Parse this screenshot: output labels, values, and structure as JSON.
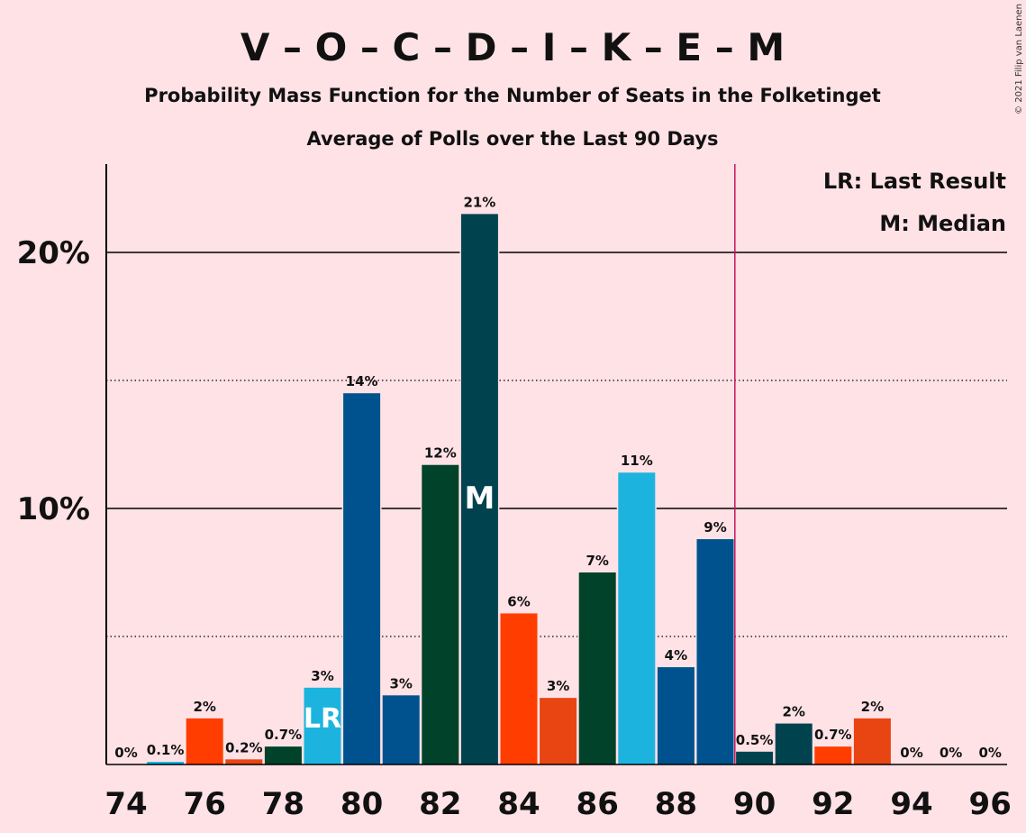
{
  "header": {
    "title": "V – O – C – D – I – K – E – M",
    "subtitle": "Probability Mass Function for the Number of Seats in the Folketinget",
    "subtitle2": "Average of Polls over the Last 90 Days",
    "copyright": "© 2021 Filip van Laenen"
  },
  "legend": {
    "last_result": "LR: Last Result",
    "median": "M: Median"
  },
  "chart_data": {
    "type": "bar",
    "title": "V – O – C – D – I – K – E – M",
    "categories": [
      74,
      75,
      76,
      77,
      78,
      79,
      80,
      81,
      82,
      83,
      84,
      85,
      86,
      87,
      88,
      89,
      90,
      91,
      92,
      93,
      94,
      95,
      96
    ],
    "values": [
      0,
      0.1,
      1.8,
      0.2,
      0.7,
      3.0,
      14.5,
      2.7,
      11.7,
      21.5,
      5.9,
      2.6,
      7.5,
      11.4,
      3.8,
      8.8,
      0.5,
      1.6,
      0.7,
      1.8,
      0,
      0,
      0
    ],
    "labels": [
      "0%",
      "0.1%",
      "2%",
      "0.2%",
      "0.7%",
      "3%",
      "14%",
      "3%",
      "12%",
      "21%",
      "6%",
      "3%",
      "7%",
      "11%",
      "4%",
      "9%",
      "0.5%",
      "2%",
      "0.7%",
      "2%",
      "0%",
      "0%",
      "0%"
    ],
    "colors": [
      "#00B1E0",
      "#00B1E0",
      "#FF3D00",
      "#E84512",
      "#00422A",
      "#1CB4DE",
      "#00528E",
      "#00528E",
      "#00422A",
      "#00434F",
      "#FF3D00",
      "#E84512",
      "#00422A",
      "#1CB4DE",
      "#00528E",
      "#00528E",
      "#00434F",
      "#00434F",
      "#FF3D00",
      "#E84512",
      "#00422A",
      "#1CB4DE",
      "#00528E"
    ],
    "xticks": [
      74,
      76,
      78,
      80,
      82,
      84,
      86,
      88,
      90,
      92,
      94,
      96
    ],
    "yticks": [
      {
        "value": 10,
        "label": "10%"
      },
      {
        "value": 20,
        "label": "20%"
      }
    ],
    "minor_gridlines": [
      5,
      15
    ],
    "ylim": [
      0,
      23.5
    ],
    "last_result_seat": 79,
    "last_result_label": "LR",
    "median_seat": 83,
    "median_label": "M",
    "majority_line_seat": 89.5,
    "majority_line_color": "#C2185B",
    "legend_position": "top-right"
  }
}
